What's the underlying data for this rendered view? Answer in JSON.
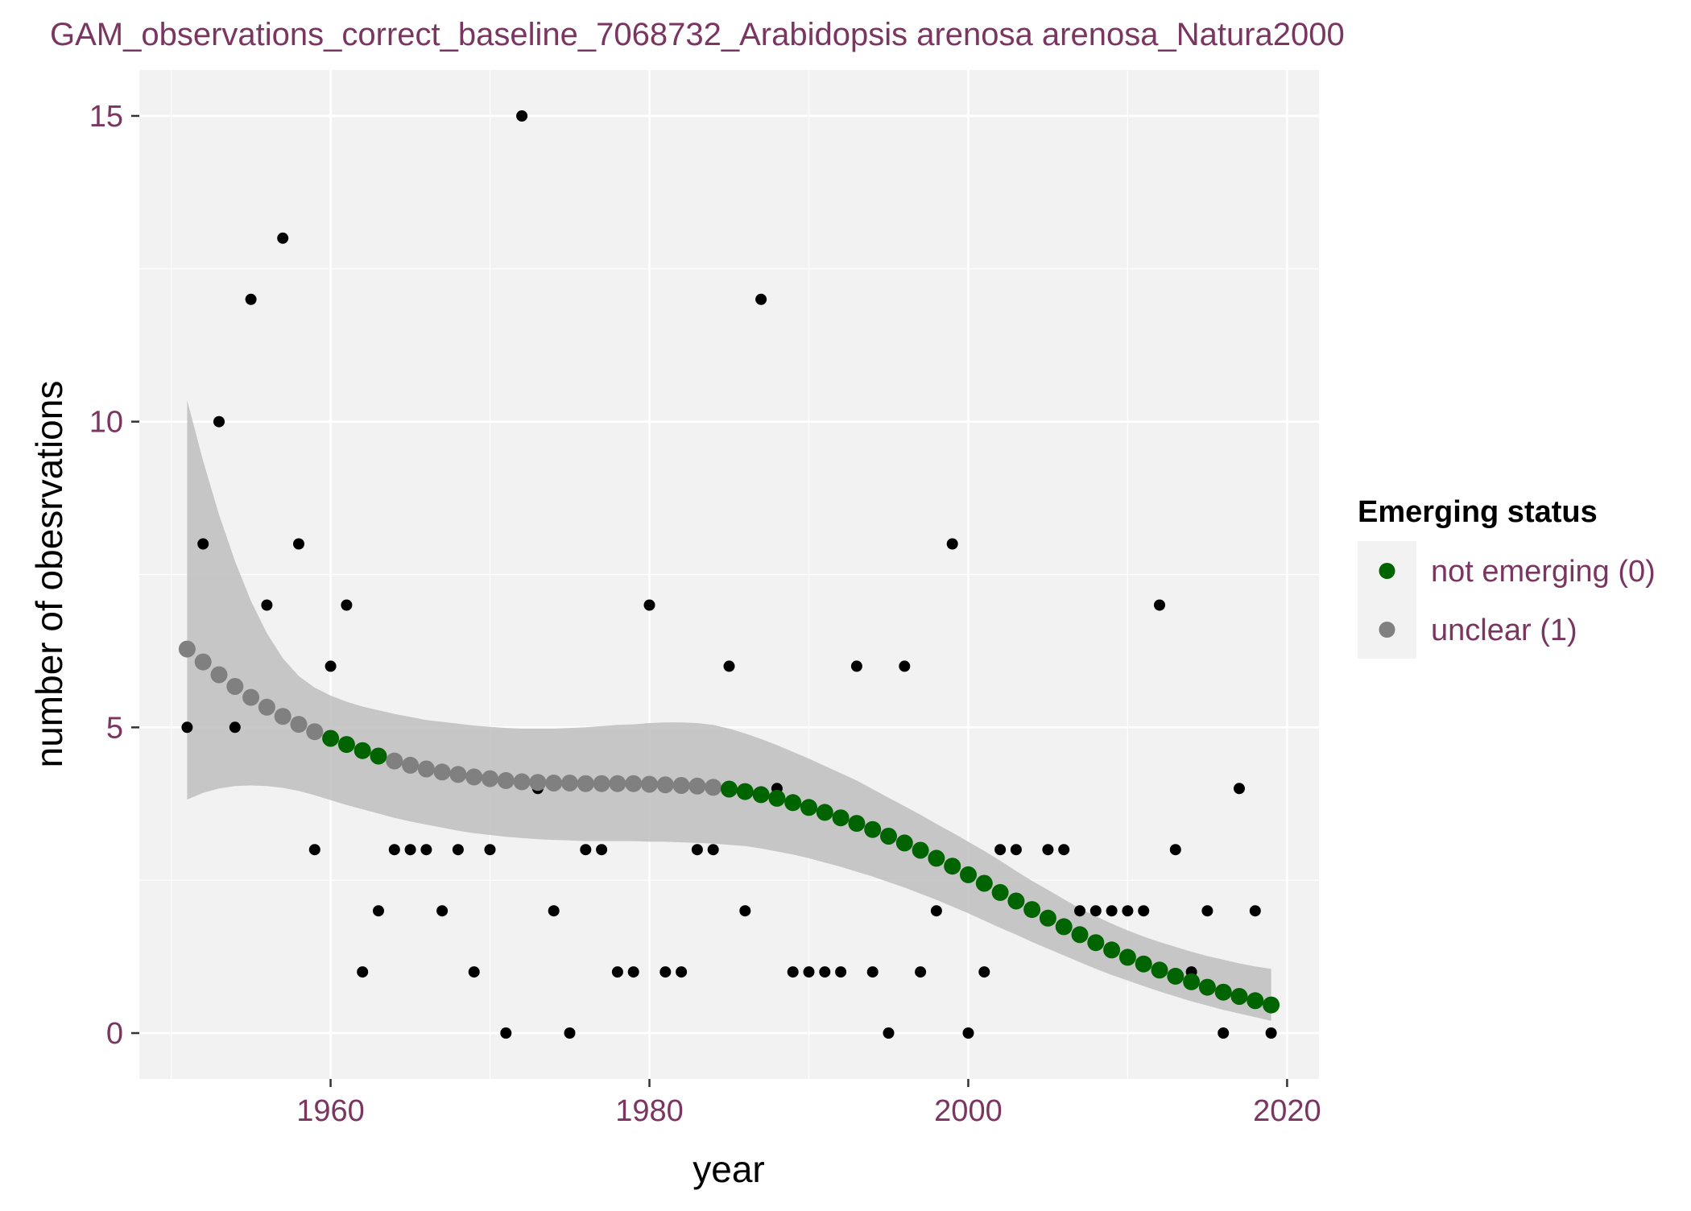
{
  "colors": {
    "text_accent": "#7a3560",
    "panel_bg": "#f2f2f2",
    "grid": "#ffffff",
    "ribbon": "#bebebe",
    "observed": "#000000",
    "not_emerging": "#006400",
    "unclear": "#808080"
  },
  "chart_data": {
    "type": "scatter",
    "title": "GAM_observations_correct_baseline_7068732_Arabidopsis arenosa arenosa_Natura2000",
    "xlabel": "year",
    "ylabel": "number of obesrvations",
    "xlim": [
      1948,
      2022
    ],
    "ylim": [
      -0.75,
      15.75
    ],
    "x_ticks": [
      1960,
      1980,
      2000,
      2020
    ],
    "y_ticks": [
      0,
      5,
      10,
      15
    ],
    "grid": true,
    "legend": {
      "title": "Emerging status",
      "position": "right",
      "entries": [
        {
          "label": "not emerging (0)",
          "color": "#006400"
        },
        {
          "label": "unclear (1)",
          "color": "#808080"
        }
      ]
    },
    "observations": {
      "x": [
        1951,
        1952,
        1953,
        1954,
        1955,
        1956,
        1957,
        1958,
        1959,
        1960,
        1961,
        1962,
        1963,
        1964,
        1965,
        1966,
        1967,
        1968,
        1969,
        1970,
        1971,
        1972,
        1973,
        1974,
        1975,
        1976,
        1977,
        1978,
        1979,
        1980,
        1981,
        1982,
        1983,
        1984,
        1985,
        1986,
        1987,
        1988,
        1989,
        1990,
        1991,
        1992,
        1993,
        1994,
        1995,
        1996,
        1997,
        1998,
        1999,
        2000,
        2001,
        2002,
        2003,
        2005,
        2006,
        2007,
        2008,
        2009,
        2010,
        2011,
        2012,
        2013,
        2014,
        2015,
        2016,
        2017,
        2018,
        2019
      ],
      "y": [
        5,
        8,
        10,
        5,
        12,
        7,
        13,
        8,
        3,
        6,
        7,
        1,
        2,
        3,
        3,
        3,
        2,
        3,
        1,
        3,
        0,
        15,
        4,
        2,
        0,
        3,
        3,
        1,
        1,
        7,
        1,
        1,
        3,
        3,
        6,
        2,
        12,
        4,
        1,
        1,
        1,
        1,
        6,
        1,
        0,
        6,
        1,
        2,
        8,
        0,
        1,
        3,
        3,
        3,
        3,
        2,
        2,
        2,
        2,
        2,
        7,
        3,
        1,
        2,
        0,
        4,
        2,
        0
      ]
    },
    "gam_fit": {
      "x": [
        1951,
        1952,
        1953,
        1954,
        1955,
        1956,
        1957,
        1958,
        1959,
        1960,
        1961,
        1962,
        1963,
        1964,
        1965,
        1966,
        1967,
        1968,
        1969,
        1970,
        1971,
        1972,
        1973,
        1974,
        1975,
        1976,
        1977,
        1978,
        1979,
        1980,
        1981,
        1982,
        1983,
        1984,
        1985,
        1986,
        1987,
        1988,
        1989,
        1990,
        1991,
        1992,
        1993,
        1994,
        1995,
        1996,
        1997,
        1998,
        1999,
        2000,
        2001,
        2002,
        2003,
        2004,
        2005,
        2006,
        2007,
        2008,
        2009,
        2010,
        2011,
        2012,
        2013,
        2014,
        2015,
        2016,
        2017,
        2018,
        2019
      ],
      "y": [
        6.28,
        6.07,
        5.86,
        5.67,
        5.49,
        5.33,
        5.18,
        5.05,
        4.93,
        4.82,
        4.72,
        4.62,
        4.53,
        4.45,
        4.38,
        4.32,
        4.27,
        4.23,
        4.19,
        4.16,
        4.13,
        4.11,
        4.1,
        4.09,
        4.09,
        4.08,
        4.08,
        4.08,
        4.08,
        4.07,
        4.06,
        4.05,
        4.04,
        4.02,
        3.99,
        3.95,
        3.9,
        3.84,
        3.77,
        3.69,
        3.61,
        3.52,
        3.43,
        3.33,
        3.22,
        3.11,
        2.99,
        2.86,
        2.73,
        2.59,
        2.45,
        2.3,
        2.16,
        2.02,
        1.88,
        1.74,
        1.61,
        1.48,
        1.36,
        1.24,
        1.13,
        1.03,
        0.93,
        0.84,
        0.75,
        0.67,
        0.6,
        0.53,
        0.46
      ],
      "status": [
        1,
        1,
        1,
        1,
        1,
        1,
        1,
        1,
        1,
        0,
        0,
        0,
        0,
        1,
        1,
        1,
        1,
        1,
        1,
        1,
        1,
        1,
        1,
        1,
        1,
        1,
        1,
        1,
        1,
        1,
        1,
        1,
        1,
        1,
        0,
        0,
        0,
        0,
        0,
        0,
        0,
        0,
        0,
        0,
        0,
        0,
        0,
        0,
        0,
        0,
        0,
        0,
        0,
        0,
        0,
        0,
        0,
        0,
        0,
        0,
        0,
        0,
        0,
        0,
        0,
        0,
        0,
        0,
        0
      ],
      "ci_lower": [
        3.82,
        3.93,
        4.0,
        4.04,
        4.05,
        4.04,
        4.01,
        3.96,
        3.89,
        3.81,
        3.73,
        3.66,
        3.59,
        3.52,
        3.46,
        3.41,
        3.36,
        3.31,
        3.27,
        3.24,
        3.21,
        3.19,
        3.17,
        3.16,
        3.15,
        3.14,
        3.14,
        3.14,
        3.14,
        3.13,
        3.13,
        3.12,
        3.11,
        3.1,
        3.08,
        3.06,
        3.02,
        2.97,
        2.92,
        2.86,
        2.79,
        2.72,
        2.64,
        2.56,
        2.47,
        2.38,
        2.28,
        2.18,
        2.07,
        1.96,
        1.84,
        1.72,
        1.61,
        1.49,
        1.38,
        1.27,
        1.16,
        1.05,
        0.95,
        0.86,
        0.77,
        0.68,
        0.6,
        0.52,
        0.45,
        0.38,
        0.32,
        0.26,
        0.2
      ],
      "ci_upper": [
        10.35,
        9.36,
        8.48,
        7.72,
        7.07,
        6.54,
        6.13,
        5.84,
        5.65,
        5.52,
        5.42,
        5.34,
        5.28,
        5.22,
        5.17,
        5.12,
        5.09,
        5.06,
        5.03,
        5.01,
        4.99,
        4.98,
        4.98,
        4.98,
        4.99,
        5.0,
        5.02,
        5.04,
        5.05,
        5.07,
        5.08,
        5.08,
        5.07,
        5.04,
        4.98,
        4.9,
        4.81,
        4.71,
        4.6,
        4.49,
        4.37,
        4.25,
        4.13,
        3.99,
        3.85,
        3.71,
        3.57,
        3.42,
        3.28,
        3.13,
        2.98,
        2.82,
        2.65,
        2.49,
        2.34,
        2.19,
        2.04,
        1.91,
        1.79,
        1.68,
        1.58,
        1.49,
        1.41,
        1.33,
        1.26,
        1.2,
        1.14,
        1.09,
        1.05
      ]
    }
  }
}
